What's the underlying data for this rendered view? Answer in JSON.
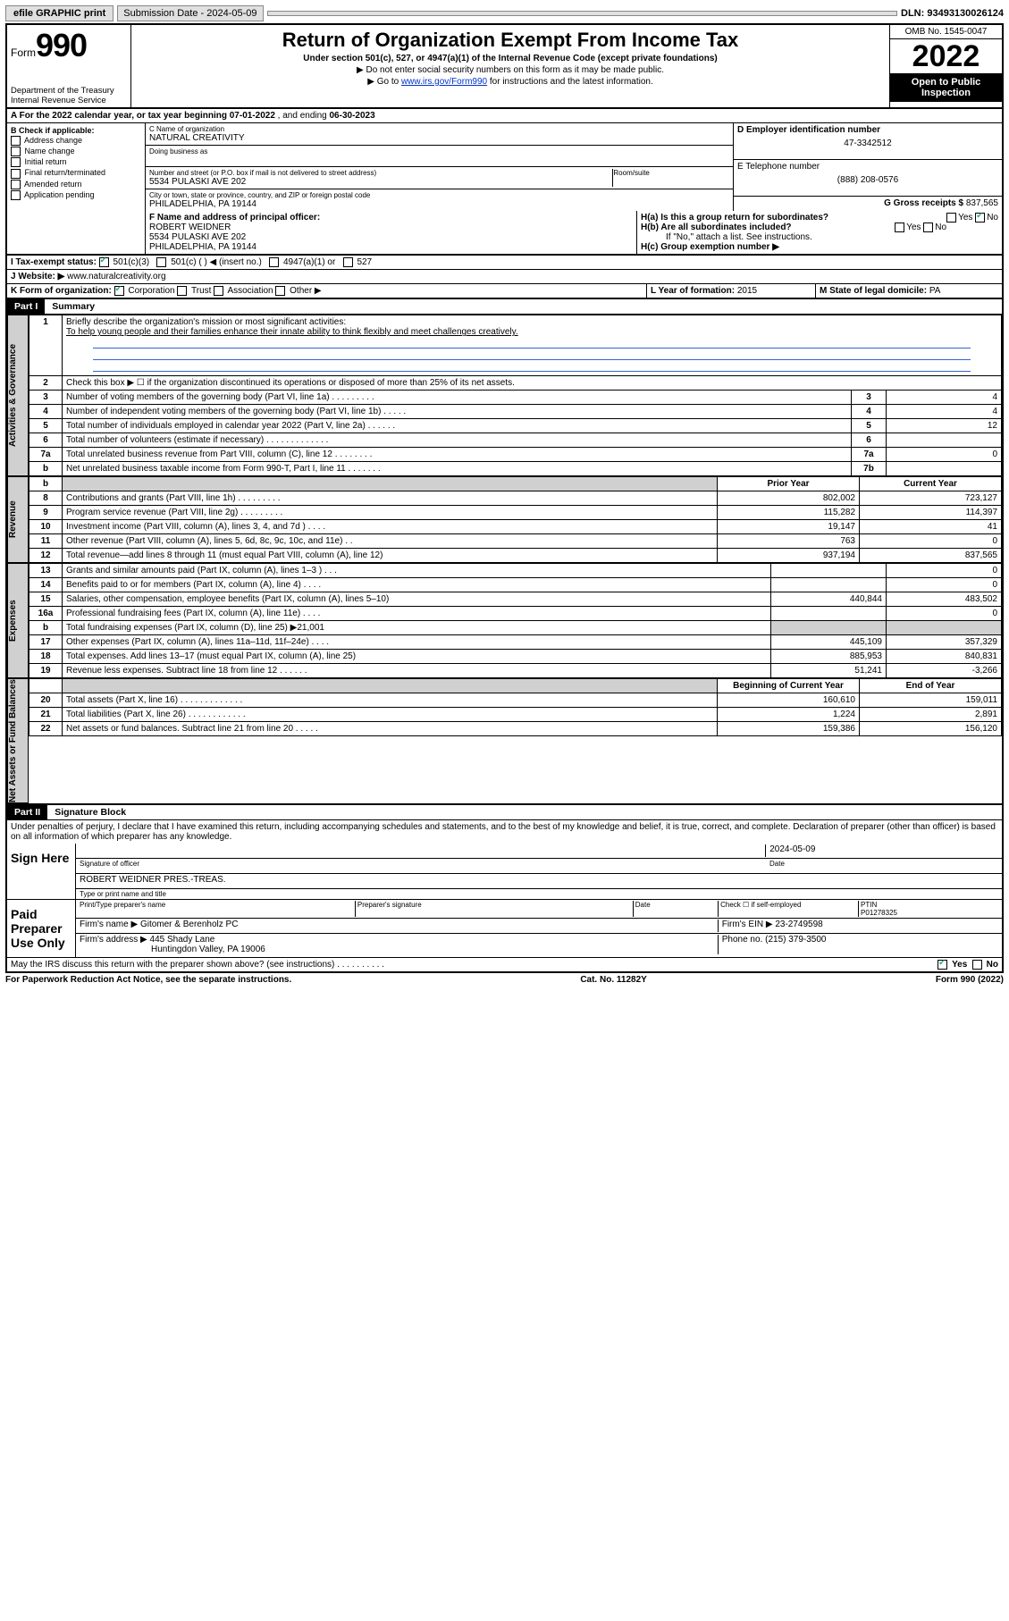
{
  "topbar": {
    "efile": "efile GRAPHIC print",
    "sub_label": "Submission Date - 2024-05-09",
    "dln": "DLN: 93493130026124"
  },
  "header": {
    "form_label": "Form",
    "form_num": "990",
    "dept": "Department of the Treasury\nInternal Revenue Service",
    "title": "Return of Organization Exempt From Income Tax",
    "sub": "Under section 501(c), 527, or 4947(a)(1) of the Internal Revenue Code (except private foundations)",
    "note1": "▶ Do not enter social security numbers on this form as it may be made public.",
    "note2_pre": "▶ Go to ",
    "note2_link": "www.irs.gov/Form990",
    "note2_post": " for instructions and the latest information.",
    "omb": "OMB No. 1545-0047",
    "year": "2022",
    "inspect": "Open to Public Inspection"
  },
  "line_a": {
    "text_pre": "A For the 2022 calendar year, or tax year beginning ",
    "begin": "07-01-2022",
    "mid": " , and ending ",
    "end": "06-30-2023"
  },
  "box_b": {
    "title": "B Check if applicable:",
    "items": [
      "Address change",
      "Name change",
      "Initial return",
      "Final return/terminated",
      "Amended return",
      "Application pending"
    ]
  },
  "box_c": {
    "name_lbl": "C Name of organization",
    "name": "NATURAL CREATIVITY",
    "dba_lbl": "Doing business as",
    "addr_lbl": "Number and street (or P.O. box if mail is not delivered to street address)",
    "room_lbl": "Room/suite",
    "addr": "5534 PULASKI AVE 202",
    "city_lbl": "City or town, state or province, country, and ZIP or foreign postal code",
    "city": "PHILADELPHIA, PA  19144"
  },
  "box_d": {
    "lbl": "D Employer identification number",
    "val": "47-3342512"
  },
  "box_e": {
    "lbl": "E Telephone number",
    "val": "(888) 208-0576"
  },
  "box_g": {
    "lbl": "G Gross receipts $",
    "val": "837,565"
  },
  "box_f": {
    "lbl": "F Name and address of principal officer:",
    "name": "ROBERT WEIDNER",
    "addr1": "5534 PULASKI AVE 202",
    "addr2": "PHILADELPHIA, PA  19144"
  },
  "box_h": {
    "ha": "H(a)  Is this a group return for subordinates?",
    "ha_yes": "Yes",
    "ha_no": "No",
    "hb": "H(b)  Are all subordinates included?",
    "hb_note": "If \"No,\" attach a list. See instructions.",
    "hc": "H(c)  Group exemption number ▶"
  },
  "row_i": {
    "lbl": "I  Tax-exempt status:",
    "o1": "501(c)(3)",
    "o2": "501(c) (  ) ◀ (insert no.)",
    "o3": "4947(a)(1) or",
    "o4": "527"
  },
  "row_j": {
    "lbl": "J  Website: ▶",
    "val": "www.naturalcreativity.org"
  },
  "row_k": {
    "lbl": "K Form of organization:",
    "o1": "Corporation",
    "o2": "Trust",
    "o3": "Association",
    "o4": "Other ▶"
  },
  "row_l": {
    "lbl": "L Year of formation:",
    "val": "2015"
  },
  "row_m": {
    "lbl": "M State of legal domicile:",
    "val": "PA"
  },
  "part1": {
    "hdr": "Part I",
    "title": "Summary",
    "q1": "Briefly describe the organization's mission or most significant activities:",
    "q1_ans": "To help young people and their families enhance their innate ability to think flexibly and meet challenges creatively.",
    "q2": "Check this box ▶ ☐  if the organization discontinued its operations or disposed of more than 25% of its net assets.",
    "rows_top": [
      {
        "n": "3",
        "t": "Number of voting members of the governing body (Part VI, line 1a)   .   .   .   .   .   .   .   .   .",
        "box": "3",
        "v": "4"
      },
      {
        "n": "4",
        "t": "Number of independent voting members of the governing body (Part VI, line 1b)   .   .   .   .   .",
        "box": "4",
        "v": "4"
      },
      {
        "n": "5",
        "t": "Total number of individuals employed in calendar year 2022 (Part V, line 2a)   .   .   .   .   .   .",
        "box": "5",
        "v": "12"
      },
      {
        "n": "6",
        "t": "Total number of volunteers (estimate if necessary)   .   .   .   .   .   .   .   .   .   .   .   .   .",
        "box": "6",
        "v": ""
      },
      {
        "n": "7a",
        "t": "Total unrelated business revenue from Part VIII, column (C), line 12   .   .   .   .   .   .   .   .",
        "box": "7a",
        "v": "0"
      },
      {
        "n": "b",
        "t": "Net unrelated business taxable income from Form 990-T, Part I, line 11   .   .   .   .   .   .   .",
        "box": "7b",
        "v": ""
      }
    ],
    "col_hdr_prior": "Prior Year",
    "col_hdr_curr": "Current Year",
    "revenue": [
      {
        "n": "8",
        "t": "Contributions and grants (Part VIII, line 1h)   .   .   .   .   .   .   .   .   .",
        "p": "802,002",
        "c": "723,127"
      },
      {
        "n": "9",
        "t": "Program service revenue (Part VIII, line 2g)   .   .   .   .   .   .   .   .   .",
        "p": "115,282",
        "c": "114,397"
      },
      {
        "n": "10",
        "t": "Investment income (Part VIII, column (A), lines 3, 4, and 7d )   .   .   .   .",
        "p": "19,147",
        "c": "41"
      },
      {
        "n": "11",
        "t": "Other revenue (Part VIII, column (A), lines 5, 6d, 8c, 9c, 10c, and 11e)   .   .",
        "p": "763",
        "c": "0"
      },
      {
        "n": "12",
        "t": "Total revenue—add lines 8 through 11 (must equal Part VIII, column (A), line 12)",
        "p": "937,194",
        "c": "837,565"
      }
    ],
    "expenses": [
      {
        "n": "13",
        "t": "Grants and similar amounts paid (Part IX, column (A), lines 1–3 )   .   .   .",
        "p": "",
        "c": "0"
      },
      {
        "n": "14",
        "t": "Benefits paid to or for members (Part IX, column (A), line 4)   .   .   .   .",
        "p": "",
        "c": "0"
      },
      {
        "n": "15",
        "t": "Salaries, other compensation, employee benefits (Part IX, column (A), lines 5–10)",
        "p": "440,844",
        "c": "483,502"
      },
      {
        "n": "16a",
        "t": "Professional fundraising fees (Part IX, column (A), line 11e)   .   .   .   .",
        "p": "",
        "c": "0"
      },
      {
        "n": "b",
        "t": "Total fundraising expenses (Part IX, column (D), line 25) ▶21,001",
        "p": "SHADE",
        "c": "SHADE"
      },
      {
        "n": "17",
        "t": "Other expenses (Part IX, column (A), lines 11a–11d, 11f–24e)   .   .   .   .",
        "p": "445,109",
        "c": "357,329"
      },
      {
        "n": "18",
        "t": "Total expenses. Add lines 13–17 (must equal Part IX, column (A), line 25)",
        "p": "885,953",
        "c": "840,831"
      },
      {
        "n": "19",
        "t": "Revenue less expenses. Subtract line 18 from line 12   .   .   .   .   .   .",
        "p": "51,241",
        "c": "-3,266"
      }
    ],
    "col_hdr_begin": "Beginning of Current Year",
    "col_hdr_end": "End of Year",
    "net": [
      {
        "n": "20",
        "t": "Total assets (Part X, line 16)   .   .   .   .   .   .   .   .   .   .   .   .   .",
        "p": "160,610",
        "c": "159,011"
      },
      {
        "n": "21",
        "t": "Total liabilities (Part X, line 26)   .   .   .   .   .   .   .   .   .   .   .   .",
        "p": "1,224",
        "c": "2,891"
      },
      {
        "n": "22",
        "t": "Net assets or fund balances. Subtract line 21 from line 20   .   .   .   .   .",
        "p": "159,386",
        "c": "156,120"
      }
    ],
    "tab_gov": "Activities & Governance",
    "tab_rev": "Revenue",
    "tab_exp": "Expenses",
    "tab_net": "Net Assets or Fund Balances"
  },
  "part2": {
    "hdr": "Part II",
    "title": "Signature Block",
    "decl": "Under penalties of perjury, I declare that I have examined this return, including accompanying schedules and statements, and to the best of my knowledge and belief, it is true, correct, and complete. Declaration of preparer (other than officer) is based on all information of which preparer has any knowledge.",
    "sign_here": "Sign Here",
    "sig_officer": "Signature of officer",
    "sig_date": "Date",
    "sig_date_val": "2024-05-09",
    "name_title": "ROBERT WEIDNER  PRES.-TREAS.",
    "name_title_lbl": "Type or print name and title",
    "paid": "Paid Preparer Use Only",
    "prep_name_lbl": "Print/Type preparer's name",
    "prep_sig_lbl": "Preparer's signature",
    "date_lbl": "Date",
    "check_lbl": "Check ☐ if self-employed",
    "ptin_lbl": "PTIN",
    "ptin": "P01278325",
    "firm_name_lbl": "Firm's name    ▶",
    "firm_name": "Gitomer & Berenholz PC",
    "firm_ein_lbl": "Firm's EIN ▶",
    "firm_ein": "23-2749598",
    "firm_addr_lbl": "Firm's address ▶",
    "firm_addr1": "445 Shady Lane",
    "firm_addr2": "Huntingdon Valley, PA  19006",
    "phone_lbl": "Phone no.",
    "phone": "(215) 379-3500",
    "may_irs": "May the IRS discuss this return with the preparer shown above? (see instructions)   .   .   .   .   .   .   .   .   .   .",
    "yes": "Yes",
    "no": "No"
  },
  "footer": {
    "left": "For Paperwork Reduction Act Notice, see the separate instructions.",
    "mid": "Cat. No. 11282Y",
    "right": "Form 990 (2022)"
  }
}
